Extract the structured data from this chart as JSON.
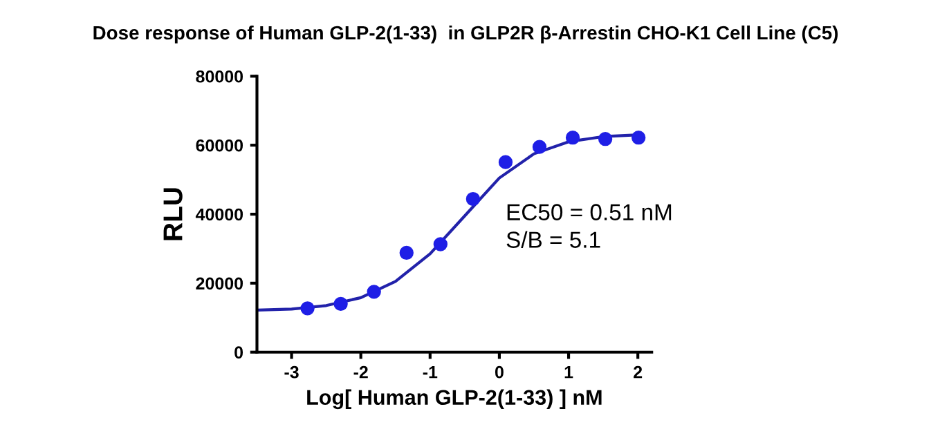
{
  "chart_data": {
    "type": "scatter",
    "title": "Dose response of Human GLP-2(1-33)  in GLP2R β-Arrestin CHO-K1 Cell Line (C5)",
    "xlabel": "Log[ Human GLP-2(1-33) ] nM",
    "ylabel": "RLU",
    "x": [
      -2.77,
      -2.29,
      -1.81,
      -1.34,
      -0.85,
      -0.38,
      0.09,
      0.58,
      1.06,
      1.53,
      2.01
    ],
    "series": [
      {
        "color": "#1f1fe6",
        "marker": "circle",
        "values": [
          12700,
          14000,
          17500,
          28800,
          31300,
          44400,
          55100,
          59500,
          62200,
          61800,
          62200
        ]
      },
      {
        "type": "line",
        "color": "#2222aa",
        "marker": "none",
        "x": [
          -3.5,
          -3,
          -2.5,
          -2,
          -1.5,
          -1,
          -0.5,
          0,
          0.5,
          1,
          1.5,
          2
        ],
        "values": [
          12200,
          12500,
          13500,
          15800,
          20500,
          28500,
          39500,
          50500,
          57500,
          61000,
          62500,
          63000
        ]
      }
    ],
    "xlim": [
      -3.5,
      2.2
    ],
    "xticks": [
      -3,
      -2,
      -1,
      0,
      1,
      2
    ],
    "ylim": [
      0,
      80000
    ],
    "yticks": [
      0,
      20000,
      40000,
      60000,
      80000
    ],
    "grid": false,
    "legend": false,
    "annotations": [
      "EC50 = 0.51 nM",
      "S/B = 5.1"
    ]
  }
}
